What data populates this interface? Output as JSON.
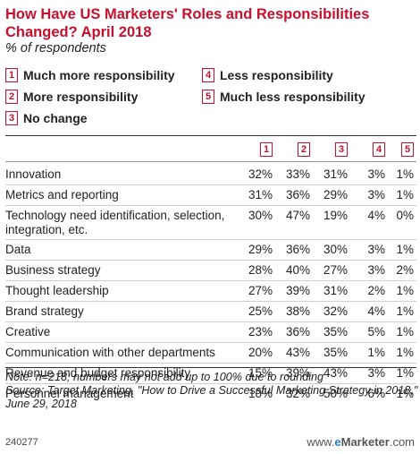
{
  "chart_data": {
    "type": "table",
    "title": "How Have US Marketers' Roles and Responsibilities Changed? April 2018",
    "subtitle": "% of respondents",
    "legend": [
      {
        "key": "1",
        "label": "Much more responsibility"
      },
      {
        "key": "2",
        "label": "More responsibility"
      },
      {
        "key": "3",
        "label": "No change"
      },
      {
        "key": "4",
        "label": "Less responsibility"
      },
      {
        "key": "5",
        "label": "Much less responsibility"
      }
    ],
    "columns": [
      "1",
      "2",
      "3",
      "4",
      "5"
    ],
    "rows": [
      {
        "label": "Innovation",
        "values": [
          "32%",
          "33%",
          "31%",
          "3%",
          "1%"
        ]
      },
      {
        "label": "Metrics and reporting",
        "values": [
          "31%",
          "36%",
          "29%",
          "3%",
          "1%"
        ]
      },
      {
        "label": "Technology need identification, selection, integration, etc.",
        "values": [
          "30%",
          "47%",
          "19%",
          "4%",
          "0%"
        ]
      },
      {
        "label": "Data",
        "values": [
          "29%",
          "36%",
          "30%",
          "3%",
          "1%"
        ]
      },
      {
        "label": "Business strategy",
        "values": [
          "28%",
          "40%",
          "27%",
          "3%",
          "2%"
        ]
      },
      {
        "label": "Thought leadership",
        "values": [
          "27%",
          "39%",
          "31%",
          "2%",
          "1%"
        ]
      },
      {
        "label": "Brand strategy",
        "values": [
          "25%",
          "38%",
          "32%",
          "4%",
          "1%"
        ]
      },
      {
        "label": "Creative",
        "values": [
          "23%",
          "36%",
          "35%",
          "5%",
          "1%"
        ]
      },
      {
        "label": "Communication with other departments",
        "values": [
          "20%",
          "43%",
          "35%",
          "1%",
          "1%"
        ]
      },
      {
        "label": "Revenue and budget responsibility",
        "values": [
          "15%",
          "39%",
          "43%",
          "3%",
          "1%"
        ]
      },
      {
        "label": "Personnel management",
        "values": [
          "10%",
          "32%",
          "50%",
          "6%",
          "1%"
        ]
      }
    ],
    "note": "Note: n=218; numbers may not add up to 100% due to rounding",
    "source": "Source: Target Marketing, \"How to Drive a Successful Marketing Strategy in 2018,\" June 29, 2018",
    "chart_id": "240277",
    "brand": "www.eMarketer.com"
  },
  "colors": {
    "accent": "#c8102e",
    "brand_e": "#2a7fc7"
  }
}
